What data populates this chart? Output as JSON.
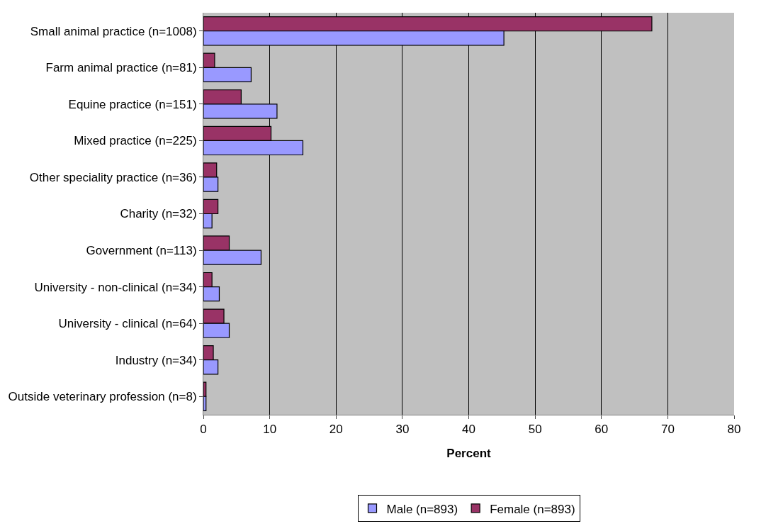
{
  "chart_data": {
    "type": "bar",
    "orientation": "horizontal",
    "xlabel": "Percent",
    "categories": [
      "Small animal practice (n=1008)",
      "Farm animal practice (n=81)",
      "Equine practice (n=151)",
      "Mixed practice (n=225)",
      "Other speciality practice (n=36)",
      "Charity (n=32)",
      "Government (n=113)",
      "University - non-clinical (n=34)",
      "University - clinical (n=64)",
      "Industry (n=34)",
      "Outside veterinary profession (n=8)"
    ],
    "series": [
      {
        "name": "Male (n=893)",
        "color": "#9999ff",
        "values": [
          45.3,
          7.2,
          11.1,
          15.0,
          2.2,
          1.3,
          8.7,
          2.4,
          3.9,
          2.2,
          0.4
        ]
      },
      {
        "name": "Female (n=893)",
        "color": "#993366",
        "values": [
          67.6,
          1.7,
          5.7,
          10.2,
          2.0,
          2.2,
          3.9,
          1.3,
          3.1,
          1.5,
          0.4
        ]
      }
    ],
    "xlim": [
      0,
      80
    ],
    "xticks": [
      0,
      10,
      20,
      30,
      40,
      50,
      60,
      70,
      80
    ],
    "grid": "x",
    "legend": "bottom"
  }
}
